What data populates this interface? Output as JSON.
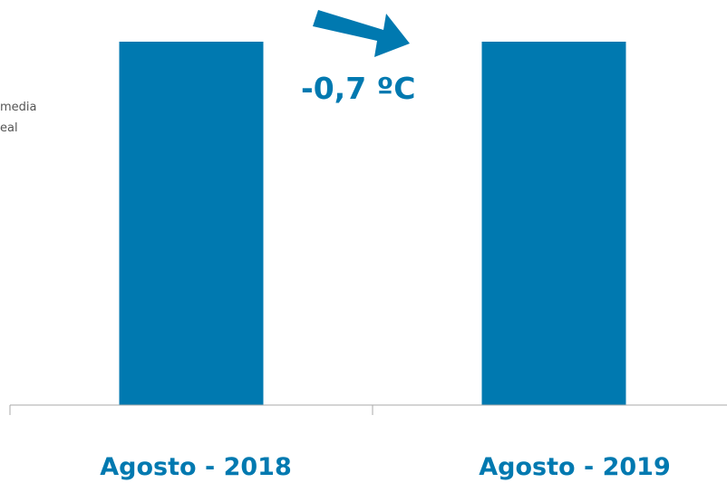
{
  "side_label": {
    "line1": "media",
    "line2": "eal"
  },
  "annotation": {
    "delta_text": "-0,7 ºC"
  },
  "colors": {
    "bar": "#0079b0",
    "axis": "#aaaaaa",
    "text_side": "#555555"
  },
  "chart_data": {
    "type": "bar",
    "categories": [
      "Agosto - 2018",
      "Agosto - 2019"
    ],
    "values": [
      1,
      1
    ],
    "title": "",
    "xlabel": "",
    "ylabel": "",
    "ylim": [
      0,
      1
    ],
    "grid": false,
    "annotations": [
      "-0,7 ºC"
    ]
  }
}
